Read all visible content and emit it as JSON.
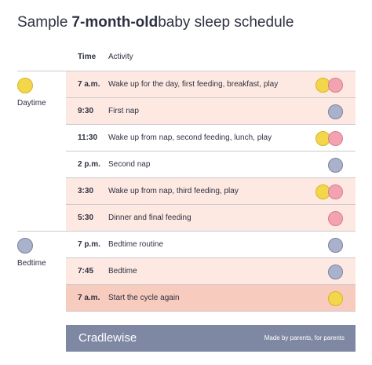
{
  "title": [
    "Sample",
    "7-month-old",
    "baby sleep schedule"
  ],
  "header": {
    "time": "Time",
    "activity": "Activity"
  },
  "sections": [
    {
      "label": "Daytime",
      "rows": [
        {
          "time": "7 a.m.",
          "activity": "Wake up for the day, first feeding, breakfast, play"
        },
        {
          "time": "9:30",
          "activity": "First nap"
        },
        {
          "time": "11:30",
          "activity": "Wake up from nap, second feeding, lunch, play"
        },
        {
          "time": "2 p.m.",
          "activity": "Second nap"
        },
        {
          "time": "3:30",
          "activity": "Wake up from nap, third feeding, play"
        },
        {
          "time": "5:30",
          "activity": "Dinner and final feeding"
        }
      ]
    },
    {
      "label": "Bedtime",
      "rows": [
        {
          "time": "7 p.m.",
          "activity": "Bedtime routine"
        },
        {
          "time": "7:45",
          "activity": "Bedtime"
        },
        {
          "time": "7 a.m.",
          "activity": "Start the cycle again"
        }
      ]
    }
  ],
  "footer": {
    "brand": "Cradlewise",
    "tagline": "Made by parents, for parents"
  }
}
